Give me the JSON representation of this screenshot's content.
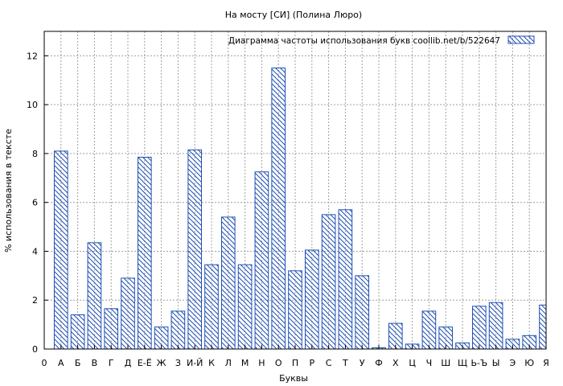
{
  "chart_data": {
    "type": "bar",
    "title": "На мосту [СИ] (Полина Люро)",
    "xlabel": "Буквы",
    "ylabel": "% использования в тексте",
    "legend": "Диаграмма частоты использования букв  coollib.net/b/522647",
    "legend_position": "top-right",
    "grid": true,
    "ylim": [
      0,
      13
    ],
    "yticks": [
      0,
      2,
      4,
      6,
      8,
      10,
      12
    ],
    "x_ticks": [
      "0",
      "А",
      "Б",
      "В",
      "Г",
      "Д",
      "Е-Ё",
      "Ж",
      "З",
      "И-Й",
      "К",
      "Л",
      "М",
      "Н",
      "О",
      "П",
      "Р",
      "С",
      "Т",
      "У",
      "Ф",
      "Х",
      "Ц",
      "Ч",
      "Ш",
      "Щ",
      "Ь-Ъ",
      "Ы",
      "Э",
      "Ю",
      "Я"
    ],
    "categories": [
      "А",
      "Б",
      "В",
      "Г",
      "Д",
      "Е-Ё",
      "Ж",
      "З",
      "И-Й",
      "К",
      "Л",
      "М",
      "Н",
      "О",
      "П",
      "Р",
      "С",
      "Т",
      "У",
      "Ф",
      "Х",
      "Ц",
      "Ч",
      "Ш",
      "Щ",
      "Ь-Ъ",
      "Ы",
      "Э",
      "Ю",
      "Я"
    ],
    "values": [
      8.1,
      1.4,
      4.35,
      1.65,
      2.9,
      7.85,
      0.9,
      1.55,
      8.15,
      3.45,
      5.4,
      3.45,
      7.25,
      11.5,
      3.2,
      4.05,
      5.5,
      5.7,
      3.0,
      0.05,
      1.05,
      0.2,
      1.55,
      0.9,
      0.25,
      1.75,
      1.9,
      0.4,
      0.55,
      1.8
    ],
    "colors": {
      "bar_stroke": "#1f4fb4",
      "grid": "#a0a0a0",
      "axis": "#000000"
    }
  }
}
